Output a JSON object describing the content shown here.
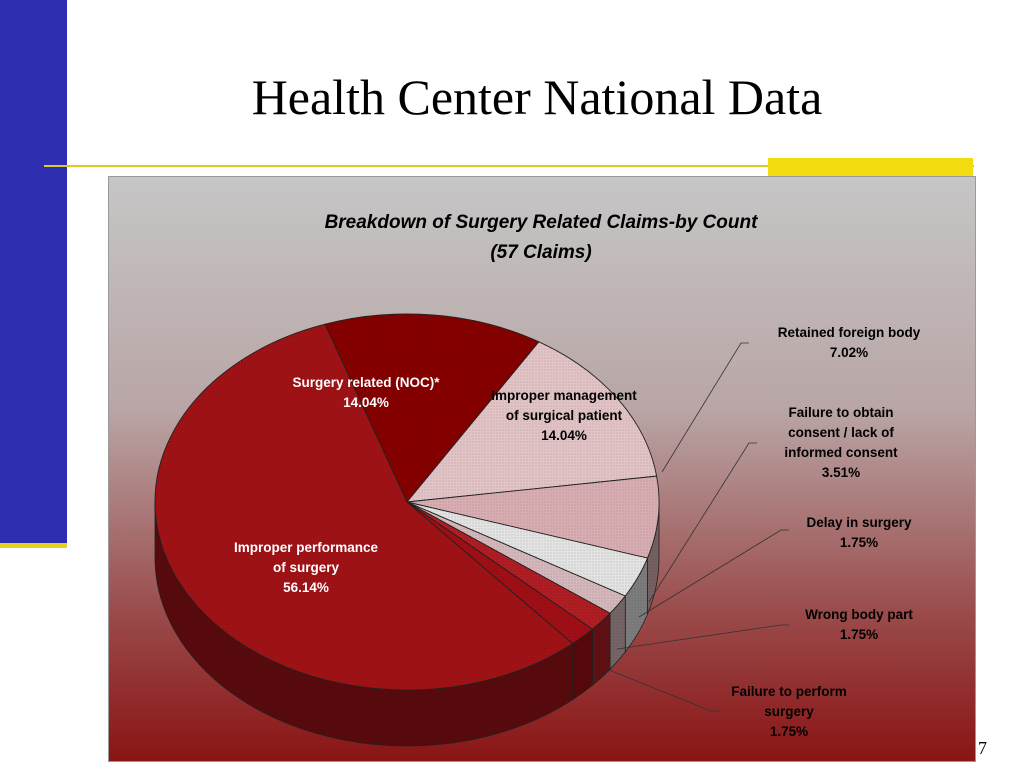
{
  "slide": {
    "title": "Health Center National Data",
    "page_number": "7"
  },
  "colors": {
    "blue_bar": "#2e2fb0",
    "yellow_accent": "#f2dc10",
    "rule": "#d8cc2a"
  },
  "chart_data": {
    "type": "pie",
    "title": "Breakdown of Surgery Related Claims-by Count",
    "subtitle": "(57 Claims)",
    "three_d": true,
    "slices": [
      {
        "label": "Surgery related (NOC)*",
        "value": 14.04,
        "value_label": "14.04%",
        "color": "#860000",
        "label_lines": [
          "Surgery related (NOC)*",
          "14.04%"
        ]
      },
      {
        "label": "Improper management of surgical patient",
        "value": 14.04,
        "value_label": "14.04%",
        "color": "#e2c4c6",
        "label_lines": [
          "Improper management",
          "of surgical patient",
          "14.04%"
        ]
      },
      {
        "label": "Retained foreign body",
        "value": 7.02,
        "value_label": "7.02%",
        "color": "#d9aeb2",
        "label_lines": [
          "Retained foreign body",
          "7.02%"
        ]
      },
      {
        "label": "Failure to obtain consent / lack of informed consent",
        "value": 3.51,
        "value_label": "3.51%",
        "color": "#e3e3e3",
        "label_lines": [
          "Failure to obtain",
          "consent / lack of",
          "informed consent",
          "3.51%"
        ]
      },
      {
        "label": "Delay in surgery",
        "value": 1.75,
        "value_label": "1.75%",
        "color": "#d5b8bc",
        "label_lines": [
          "Delay in surgery",
          "1.75%"
        ]
      },
      {
        "label": "Wrong body part",
        "value": 1.75,
        "value_label": "1.75%",
        "color": "#b01e24",
        "label_lines": [
          "Wrong body part",
          "1.75%"
        ]
      },
      {
        "label": "Failure to perform surgery",
        "value": 1.75,
        "value_label": "1.75%",
        "color": "#a00f15",
        "label_lines": [
          "Failure to perform",
          "surgery",
          "1.75%"
        ]
      },
      {
        "label": "Improper performance of surgery",
        "value": 56.14,
        "value_label": "56.14%",
        "color": "#a11216",
        "label_lines": [
          "Improper performance",
          "of surgery",
          "56.14%"
        ]
      }
    ]
  }
}
